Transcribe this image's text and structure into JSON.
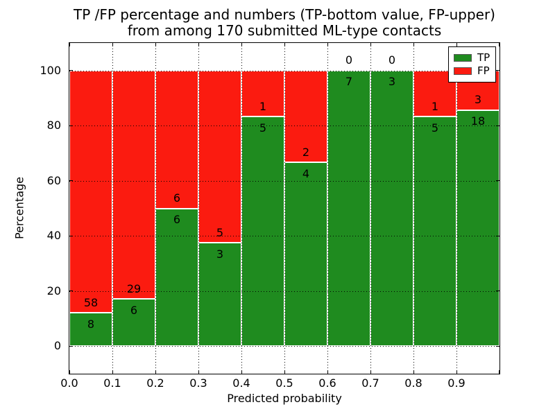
{
  "chart_data": {
    "type": "bar",
    "stacking": "percent",
    "title_line1": "TP /FP percentage and numbers (TP-bottom value, FP-upper)",
    "title_line2": "from among 170 submitted ML-type contacts",
    "xlabel": "Predicted probability",
    "ylabel": "Percentage",
    "x_tick_labels": [
      "0.0",
      "0.1",
      "0.2",
      "0.3",
      "0.4",
      "0.5",
      "0.6",
      "0.7",
      "0.8",
      "0.9"
    ],
    "y_ticks": [
      0,
      20,
      40,
      60,
      80,
      100
    ],
    "y_tick_labels": [
      "0",
      "20",
      "40",
      "60",
      "80",
      "100"
    ],
    "xlim": [
      0.0,
      1.0
    ],
    "ylim": [
      -10,
      110
    ],
    "bin_width": 0.1,
    "bin_starts": [
      0.0,
      0.1,
      0.2,
      0.3,
      0.4,
      0.5,
      0.6,
      0.7,
      0.8,
      0.9
    ],
    "total_contacts": 170,
    "grid": "dotted",
    "legend_position": "upper right",
    "series": [
      {
        "name": "TP",
        "color": "#1f8b1f",
        "counts": [
          8,
          6,
          6,
          3,
          5,
          4,
          7,
          3,
          5,
          18
        ]
      },
      {
        "name": "FP",
        "color": "#fb1b10",
        "counts": [
          58,
          29,
          6,
          5,
          1,
          2,
          0,
          0,
          1,
          3
        ]
      }
    ],
    "tp_percent": [
      12.1,
      17.1,
      50.0,
      37.5,
      83.3,
      66.7,
      100.0,
      100.0,
      83.3,
      85.7
    ]
  }
}
